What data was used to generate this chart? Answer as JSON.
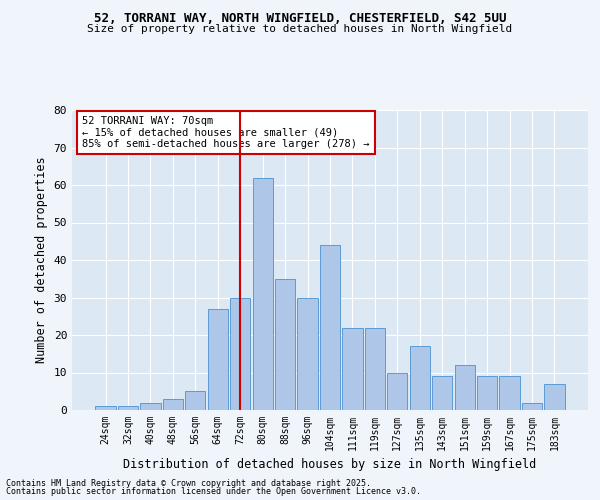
{
  "title1": "52, TORRANI WAY, NORTH WINGFIELD, CHESTERFIELD, S42 5UU",
  "title2": "Size of property relative to detached houses in North Wingfield",
  "xlabel": "Distribution of detached houses by size in North Wingfield",
  "ylabel": "Number of detached properties",
  "categories": [
    "24sqm",
    "32sqm",
    "40sqm",
    "48sqm",
    "56sqm",
    "64sqm",
    "72sqm",
    "80sqm",
    "88sqm",
    "96sqm",
    "104sqm",
    "111sqm",
    "119sqm",
    "127sqm",
    "135sqm",
    "143sqm",
    "151sqm",
    "159sqm",
    "167sqm",
    "175sqm",
    "183sqm"
  ],
  "values": [
    1,
    1,
    2,
    3,
    5,
    27,
    30,
    62,
    35,
    30,
    44,
    22,
    22,
    10,
    17,
    9,
    12,
    9,
    9,
    2,
    7
  ],
  "bar_color": "#aec6e8",
  "bar_edge_color": "#5b9bd5",
  "vline_index": 6,
  "vline_color": "#cc0000",
  "annotation_text": "52 TORRANI WAY: 70sqm\n← 15% of detached houses are smaller (49)\n85% of semi-detached houses are larger (278) →",
  "annotation_box_color": "#ffffff",
  "annotation_box_edge": "#cc0000",
  "ylim": [
    0,
    80
  ],
  "yticks": [
    0,
    10,
    20,
    30,
    40,
    50,
    60,
    70,
    80
  ],
  "fig_bg": "#f0f4fb",
  "plot_bg": "#dce9f5",
  "grid_color": "#ffffff",
  "footer1": "Contains HM Land Registry data © Crown copyright and database right 2025.",
  "footer2": "Contains public sector information licensed under the Open Government Licence v3.0."
}
